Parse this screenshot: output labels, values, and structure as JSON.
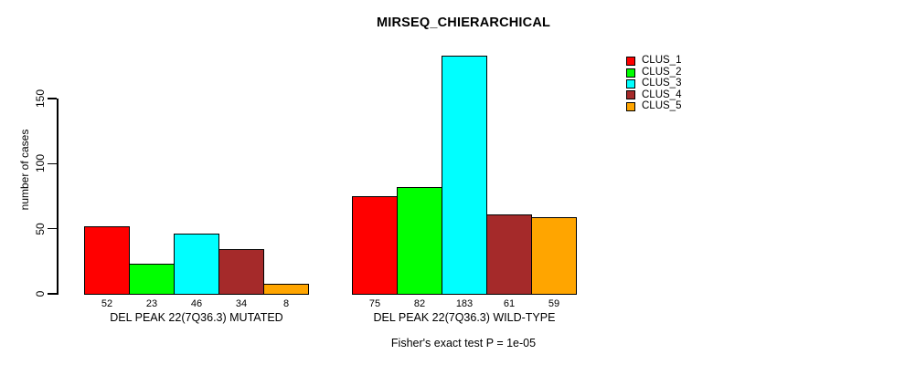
{
  "title": "MIRSEQ_CHIERARCHICAL",
  "footer": "Fisher's exact test P = 1e-05",
  "chart_data": {
    "type": "bar",
    "title": "MIRSEQ_CHIERARCHICAL",
    "xlabel": "",
    "ylabel": "number of cases",
    "ylim": [
      0,
      190
    ],
    "yticks": [
      0,
      50,
      100,
      150
    ],
    "grid": false,
    "legend_position": "top-right",
    "bar_value_labels": true,
    "annotation": "Fisher's exact test P = 1e-05",
    "categories": [
      "DEL PEAK 22(7Q36.3) MUTATED",
      "DEL PEAK 22(7Q36.3) WILD-TYPE"
    ],
    "series": [
      {
        "name": "CLUS_1",
        "color": "#FF0000",
        "values": [
          52,
          75
        ]
      },
      {
        "name": "CLUS_2",
        "color": "#00FF00",
        "values": [
          23,
          82
        ]
      },
      {
        "name": "CLUS_3",
        "color": "#00FFFF",
        "values": [
          46,
          183
        ]
      },
      {
        "name": "CLUS_4",
        "color": "#A52A2A",
        "values": [
          34,
          61
        ]
      },
      {
        "name": "CLUS_5",
        "color": "#FFA500",
        "values": [
          8,
          59
        ]
      }
    ]
  }
}
